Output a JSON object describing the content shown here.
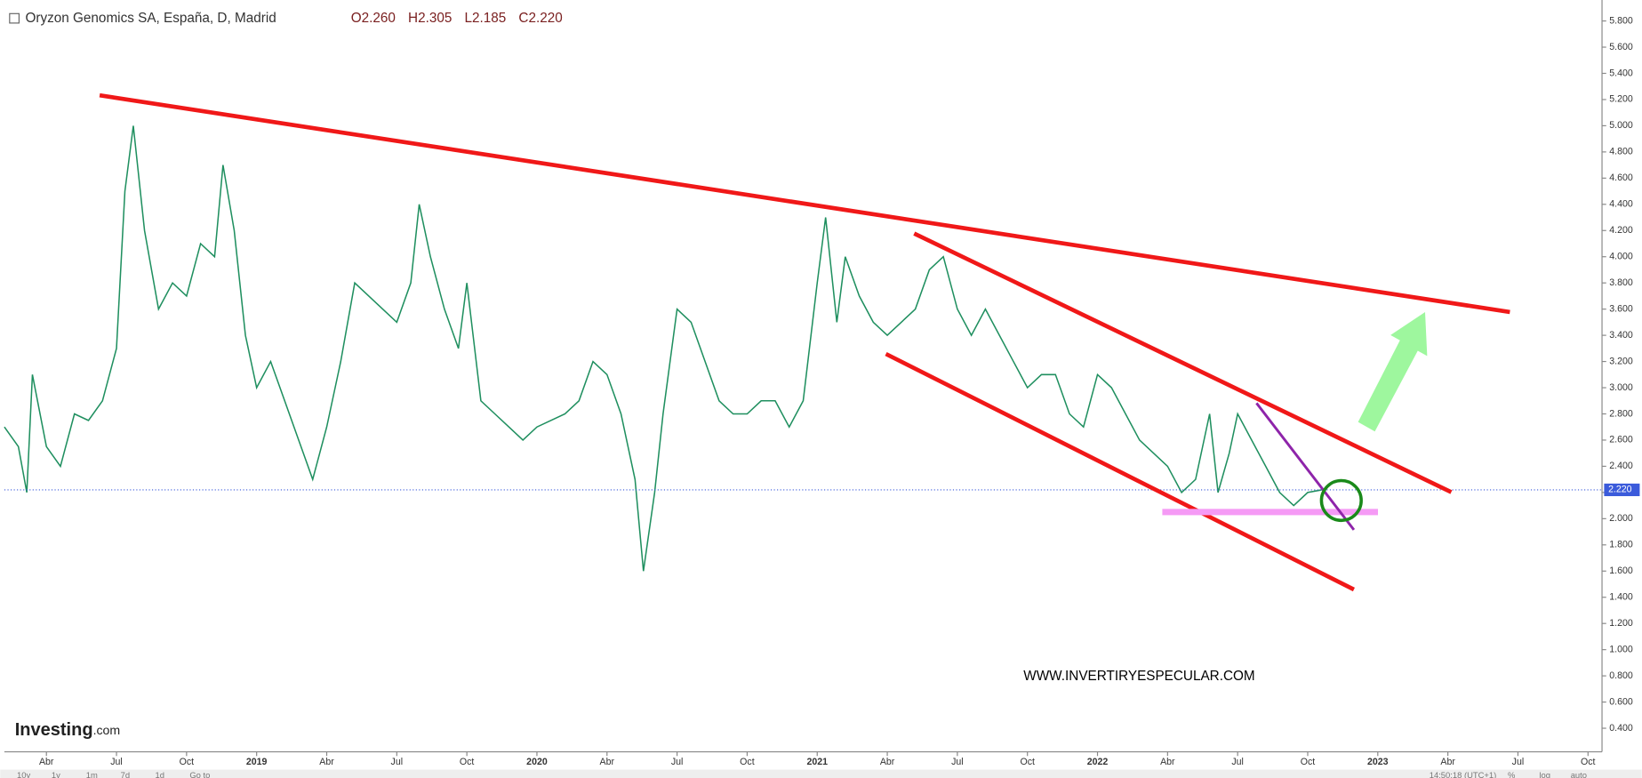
{
  "header": {
    "title": "Oryzon Genomics SA, España, D, Madrid",
    "quotes": [
      "O2.260",
      "H2.305",
      "L2.185",
      "C2.220"
    ]
  },
  "watermark": "WWW.INVERTIRYESPECULAR.COM",
  "logo": {
    "brand": "Investing",
    "suffix": ".com"
  },
  "toolbar": {
    "ranges": [
      "10y",
      "1y",
      "1m",
      "7d",
      "1d",
      "Go to"
    ],
    "clock": "14:50:18 (UTC+1)",
    "options": [
      "%",
      "log",
      "auto"
    ]
  },
  "chart_data": {
    "type": "line",
    "series": [
      {
        "name": "Oryzon Genomics SA",
        "color": "#1f8f5f",
        "x": [
          2018.1,
          2018.15,
          2018.18,
          2018.2,
          2018.25,
          2018.3,
          2018.35,
          2018.4,
          2018.45,
          2018.5,
          2018.53,
          2018.56,
          2018.6,
          2018.65,
          2018.7,
          2018.75,
          2018.8,
          2018.85,
          2018.88,
          2018.92,
          2018.96,
          2019.0,
          2019.05,
          2019.1,
          2019.15,
          2019.2,
          2019.25,
          2019.3,
          2019.35,
          2019.4,
          2019.45,
          2019.5,
          2019.55,
          2019.58,
          2019.62,
          2019.67,
          2019.72,
          2019.75,
          2019.8,
          2019.85,
          2019.9,
          2019.95,
          2020.0,
          2020.1,
          2020.15,
          2020.2,
          2020.25,
          2020.3,
          2020.35,
          2020.38,
          2020.42,
          2020.45,
          2020.5,
          2020.55,
          2020.6,
          2020.65,
          2020.7,
          2020.75,
          2020.8,
          2020.85,
          2020.9,
          2020.95,
          2021.0,
          2021.03,
          2021.07,
          2021.1,
          2021.15,
          2021.2,
          2021.25,
          2021.3,
          2021.35,
          2021.4,
          2021.45,
          2021.5,
          2021.55,
          2021.6,
          2021.65,
          2021.7,
          2021.75,
          2021.8,
          2021.85,
          2021.9,
          2021.95,
          2022.0,
          2022.05,
          2022.1,
          2022.15,
          2022.2,
          2022.25,
          2022.3,
          2022.35,
          2022.4,
          2022.43,
          2022.47,
          2022.5,
          2022.55,
          2022.6,
          2022.65,
          2022.7,
          2022.75,
          2022.8
        ],
        "values": [
          2.7,
          2.55,
          2.2,
          3.1,
          2.55,
          2.4,
          2.8,
          2.75,
          2.9,
          3.3,
          4.5,
          5.0,
          4.2,
          3.6,
          3.8,
          3.7,
          4.1,
          4.0,
          4.7,
          4.2,
          3.4,
          3.0,
          3.2,
          2.9,
          2.6,
          2.3,
          2.7,
          3.2,
          3.8,
          3.7,
          3.6,
          3.5,
          3.8,
          4.4,
          4.0,
          3.6,
          3.3,
          3.8,
          2.9,
          2.8,
          2.7,
          2.6,
          2.7,
          2.8,
          2.9,
          3.2,
          3.1,
          2.8,
          2.3,
          1.6,
          2.2,
          2.8,
          3.6,
          3.5,
          3.2,
          2.9,
          2.8,
          2.8,
          2.9,
          2.9,
          2.7,
          2.9,
          3.8,
          4.3,
          3.5,
          4.0,
          3.7,
          3.5,
          3.4,
          3.5,
          3.6,
          3.9,
          4.0,
          3.6,
          3.4,
          3.6,
          3.4,
          3.2,
          3.0,
          3.1,
          3.1,
          2.8,
          2.7,
          3.1,
          3.0,
          2.8,
          2.6,
          2.5,
          2.4,
          2.2,
          2.3,
          2.8,
          2.2,
          2.5,
          2.8,
          2.6,
          2.4,
          2.2,
          2.1,
          2.2,
          2.22
        ]
      }
    ],
    "last_price": {
      "value": 2.22,
      "label": "2.220",
      "color": "#3b5bdb"
    },
    "xlim": [
      2018.1,
      2023.8
    ],
    "xticks": [
      {
        "value": 2018.25,
        "label": "Abr"
      },
      {
        "value": 2018.5,
        "label": "Jul"
      },
      {
        "value": 2018.75,
        "label": "Oct"
      },
      {
        "value": 2019,
        "label": "2019"
      },
      {
        "value": 2019.25,
        "label": "Abr"
      },
      {
        "value": 2019.5,
        "label": "Jul"
      },
      {
        "value": 2019.75,
        "label": "Oct"
      },
      {
        "value": 2020,
        "label": "2020"
      },
      {
        "value": 2020.25,
        "label": "Abr"
      },
      {
        "value": 2020.5,
        "label": "Jul"
      },
      {
        "value": 2020.75,
        "label": "Oct"
      },
      {
        "value": 2021,
        "label": "2021"
      },
      {
        "value": 2021.25,
        "label": "Abr"
      },
      {
        "value": 2021.5,
        "label": "Jul"
      },
      {
        "value": 2021.75,
        "label": "Oct"
      },
      {
        "value": 2022,
        "label": "2022"
      },
      {
        "value": 2022.25,
        "label": "Abr"
      },
      {
        "value": 2022.5,
        "label": "Jul"
      },
      {
        "value": 2022.75,
        "label": "Oct"
      },
      {
        "value": 2023,
        "label": "2023"
      },
      {
        "value": 2023.25,
        "label": "Abr"
      },
      {
        "value": 2023.5,
        "label": "Jul"
      },
      {
        "value": 2023.75,
        "label": "Oct"
      }
    ],
    "ylim": [
      0.22,
      5.92
    ],
    "yticks": [
      {
        "value": 0.4,
        "label": "0.400"
      },
      {
        "value": 0.6,
        "label": "0.600"
      },
      {
        "value": 0.8,
        "label": "0.800"
      },
      {
        "value": 1.0,
        "label": "1.000"
      },
      {
        "value": 1.2,
        "label": "1.200"
      },
      {
        "value": 1.4,
        "label": "1.400"
      },
      {
        "value": 1.6,
        "label": "1.600"
      },
      {
        "value": 1.8,
        "label": "1.800"
      },
      {
        "value": 2.0,
        "label": "2.000"
      },
      {
        "value": 2.2,
        "label": "2.200"
      },
      {
        "value": 2.4,
        "label": "2.400"
      },
      {
        "value": 2.6,
        "label": "2.600"
      },
      {
        "value": 2.8,
        "label": "2.800"
      },
      {
        "value": 3.0,
        "label": "3.000"
      },
      {
        "value": 3.2,
        "label": "3.200"
      },
      {
        "value": 3.4,
        "label": "3.400"
      },
      {
        "value": 3.6,
        "label": "3.600"
      },
      {
        "value": 3.8,
        "label": "3.800"
      },
      {
        "value": 4.0,
        "label": "4.000"
      },
      {
        "value": 4.2,
        "label": "4.200"
      },
      {
        "value": 4.4,
        "label": "4.400"
      },
      {
        "value": 4.6,
        "label": "4.600"
      },
      {
        "value": 4.8,
        "label": "4.800"
      },
      {
        "value": 5.0,
        "label": "5.000"
      },
      {
        "value": 5.2,
        "label": "5.200"
      },
      {
        "value": 5.4,
        "label": "5.400"
      },
      {
        "value": 5.6,
        "label": "5.600"
      },
      {
        "value": 5.8,
        "label": "5.800"
      }
    ],
    "grid": false
  }
}
